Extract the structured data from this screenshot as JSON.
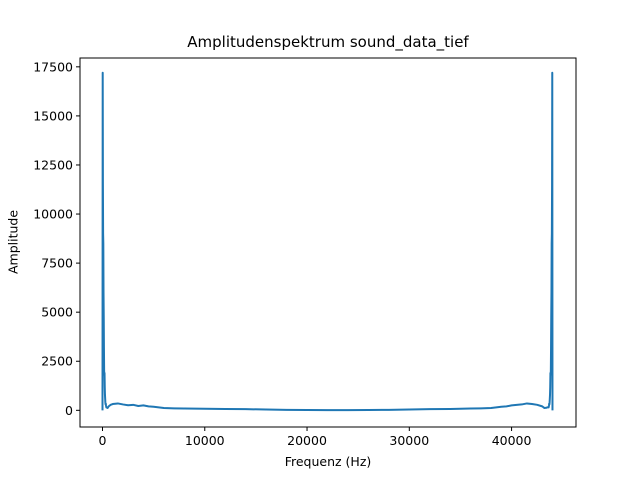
{
  "chart_data": {
    "type": "line",
    "title": "Amplitudenspektrum sound_data_tief",
    "xlabel": "Frequenz (Hz)",
    "ylabel": "Amplitude",
    "xlim": [
      -2200,
      46300
    ],
    "ylim": [
      -850,
      17950
    ],
    "xticks": [
      0,
      10000,
      20000,
      30000,
      40000
    ],
    "yticks": [
      0,
      2500,
      5000,
      7500,
      10000,
      12500,
      15000,
      17500
    ],
    "grid": false,
    "series": [
      {
        "color": "#1f77b4",
        "x": [
          0,
          20,
          40,
          60,
          80,
          100,
          120,
          140,
          160,
          180,
          200,
          220,
          240,
          260,
          280,
          300,
          320,
          340,
          360,
          380,
          400,
          450,
          500,
          600,
          800,
          1000,
          1500,
          2000,
          2500,
          3000,
          3500,
          4000,
          4500,
          5000,
          6000,
          7000,
          8000,
          10000,
          12000,
          14000,
          16000,
          18000,
          20000,
          22000,
          24000,
          26000,
          28000,
          30000,
          32000,
          34000,
          36000,
          37000,
          38000,
          39000,
          39500,
          40000,
          40500,
          41000,
          41500,
          42000,
          42500,
          43000,
          43200,
          43400,
          43500,
          43600,
          43620,
          43640,
          43660,
          43680,
          43700,
          43720,
          43740,
          43760,
          43780,
          43800,
          43820,
          43840,
          43860,
          43880,
          43900,
          43920,
          43940,
          43960,
          43980,
          44000
        ],
        "y": [
          0,
          17200,
          11500,
          9000,
          8500,
          6000,
          4800,
          3200,
          2000,
          1800,
          1900,
          1200,
          800,
          600,
          400,
          300,
          350,
          250,
          200,
          150,
          150,
          130,
          120,
          200,
          280,
          320,
          350,
          300,
          260,
          280,
          220,
          250,
          200,
          180,
          120,
          100,
          90,
          80,
          70,
          60,
          40,
          25,
          15,
          10,
          10,
          15,
          25,
          40,
          60,
          70,
          90,
          100,
          120,
          180,
          200,
          250,
          280,
          300,
          350,
          320,
          280,
          200,
          120,
          130,
          150,
          150,
          150,
          200,
          250,
          350,
          300,
          400,
          600,
          800,
          1200,
          1900,
          1800,
          2000,
          3200,
          4800,
          6000,
          8500,
          9000,
          11500,
          17200,
          0
        ]
      }
    ]
  }
}
